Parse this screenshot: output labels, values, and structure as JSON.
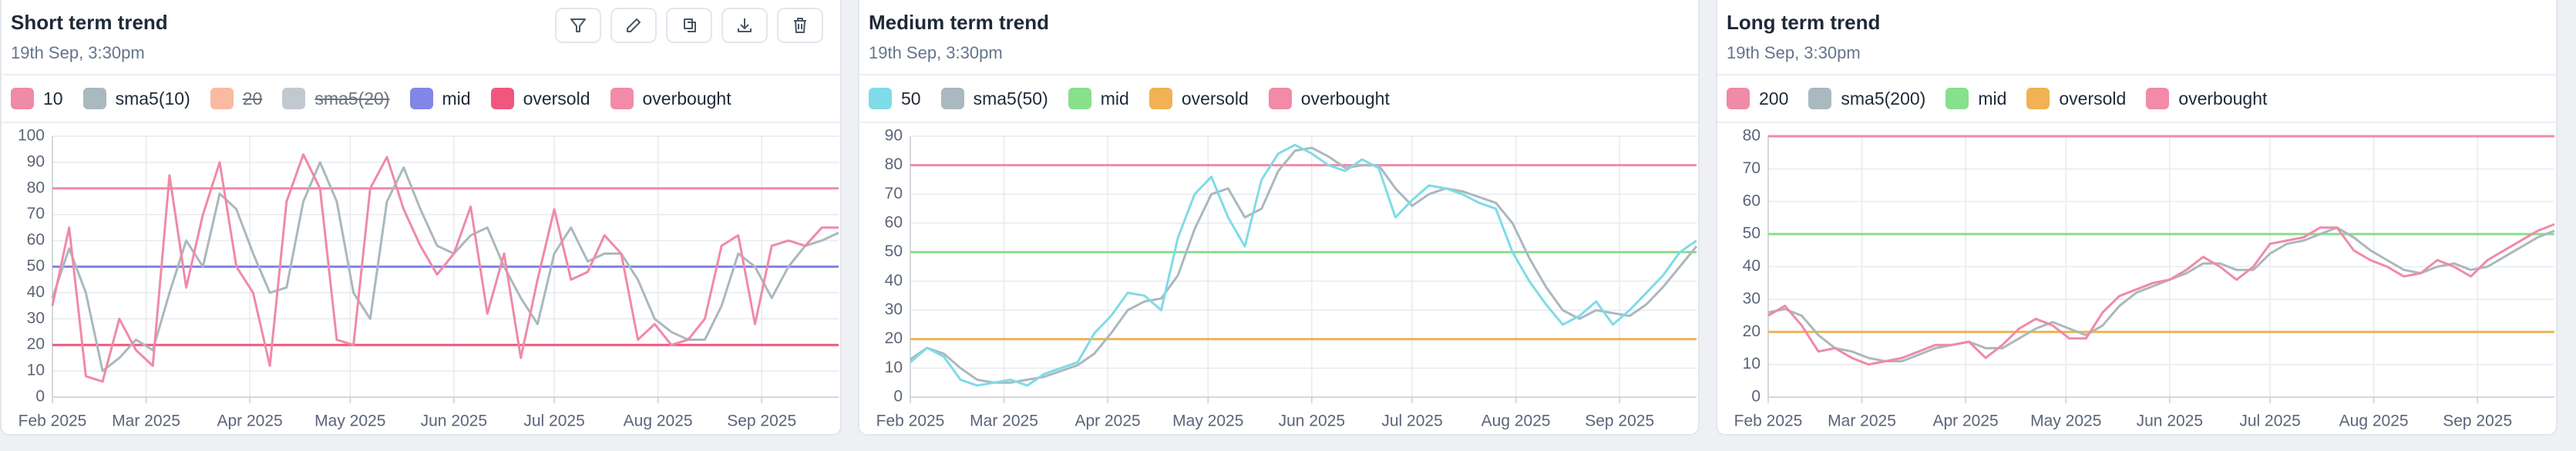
{
  "chart_data": [
    {
      "type": "line",
      "title": "Short term trend",
      "subtitle": "19th Sep, 3:30pm",
      "x": [
        0,
        5,
        10,
        15,
        20,
        25,
        30,
        35,
        40,
        45,
        50,
        55,
        60,
        65,
        70,
        75,
        80,
        85,
        90,
        95,
        100,
        105,
        110,
        115,
        120,
        125,
        130,
        135,
        140,
        145,
        150,
        155,
        160,
        165,
        170,
        175,
        180,
        185,
        190,
        195,
        200,
        205,
        210,
        215,
        220,
        225,
        230,
        235
      ],
      "xlim": [
        0,
        235
      ],
      "xticks": [
        {
          "value": 0,
          "label": "Feb 2025"
        },
        {
          "value": 28,
          "label": "Mar 2025"
        },
        {
          "value": 59,
          "label": "Apr 2025"
        },
        {
          "value": 89,
          "label": "May 2025"
        },
        {
          "value": 120,
          "label": "Jun 2025"
        },
        {
          "value": 150,
          "label": "Jul 2025"
        },
        {
          "value": 181,
          "label": "Aug 2025"
        },
        {
          "value": 212,
          "label": "Sep 2025"
        }
      ],
      "ylim": [
        0,
        100
      ],
      "yticks": [
        0,
        10,
        20,
        30,
        40,
        50,
        60,
        70,
        80,
        90,
        100
      ],
      "grid": true,
      "series": [
        {
          "name": "10",
          "color": "#ef8aa7",
          "values": [
            35,
            65,
            8,
            6,
            30,
            18,
            12,
            85,
            42,
            70,
            90,
            50,
            40,
            12,
            75,
            93,
            80,
            22,
            20,
            80,
            92,
            72,
            58,
            47,
            55,
            73,
            32,
            55,
            15,
            45,
            72,
            45,
            48,
            62,
            55,
            22,
            28,
            20,
            22,
            30,
            58,
            62,
            28,
            58,
            60,
            58,
            65,
            65
          ]
        },
        {
          "name": "sma5(10)",
          "color": "#aab8bf",
          "values": [
            38,
            57,
            40,
            10,
            15,
            22,
            18,
            40,
            60,
            50,
            78,
            72,
            55,
            40,
            42,
            75,
            90,
            75,
            40,
            30,
            75,
            88,
            72,
            58,
            55,
            62,
            65,
            50,
            38,
            28,
            55,
            65,
            52,
            55,
            55,
            45,
            30,
            25,
            22,
            22,
            35,
            55,
            50,
            38,
            50,
            58,
            60,
            63
          ]
        },
        {
          "name": "20",
          "color": "#f8a98a",
          "hidden": true
        },
        {
          "name": "sma5(20)",
          "color": "#b0bcc4",
          "hidden": true
        }
      ],
      "reference_lines": [
        {
          "name": "mid",
          "color": "#8286e6",
          "value": 50
        },
        {
          "name": "oversold",
          "color": "#f0567e",
          "value": 20
        },
        {
          "name": "overbought",
          "color": "#f28aa8",
          "value": 80
        }
      ]
    },
    {
      "type": "line",
      "title": "Medium term trend",
      "subtitle": "19th Sep, 3:30pm",
      "x": [
        0,
        5,
        10,
        15,
        20,
        25,
        30,
        35,
        40,
        45,
        50,
        55,
        60,
        65,
        70,
        75,
        80,
        85,
        90,
        95,
        100,
        105,
        110,
        115,
        120,
        125,
        130,
        135,
        140,
        145,
        150,
        155,
        160,
        165,
        170,
        175,
        180,
        185,
        190,
        195,
        200,
        205,
        210,
        215,
        220,
        225,
        230,
        235
      ],
      "xlim": [
        0,
        235
      ],
      "xticks": [
        {
          "value": 0,
          "label": "Feb 2025"
        },
        {
          "value": 28,
          "label": "Mar 2025"
        },
        {
          "value": 59,
          "label": "Apr 2025"
        },
        {
          "value": 89,
          "label": "May 2025"
        },
        {
          "value": 120,
          "label": "Jun 2025"
        },
        {
          "value": 150,
          "label": "Jul 2025"
        },
        {
          "value": 181,
          "label": "Aug 2025"
        },
        {
          "value": 212,
          "label": "Sep 2025"
        }
      ],
      "ylim": [
        0,
        90
      ],
      "yticks": [
        0,
        10,
        20,
        30,
        40,
        50,
        60,
        70,
        80,
        90
      ],
      "grid": true,
      "series": [
        {
          "name": "50",
          "color": "#7fdbe8",
          "values": [
            12,
            17,
            14,
            6,
            4,
            5,
            6,
            4,
            8,
            10,
            12,
            22,
            28,
            36,
            35,
            30,
            55,
            70,
            76,
            62,
            52,
            75,
            84,
            87,
            84,
            80,
            78,
            82,
            79,
            62,
            68,
            73,
            72,
            70,
            67,
            65,
            50,
            40,
            32,
            25,
            28,
            33,
            25,
            30,
            36,
            42,
            50,
            54
          ]
        },
        {
          "name": "sma5(50)",
          "color": "#aab8bf",
          "values": [
            13,
            17,
            15,
            10,
            6,
            5,
            5,
            6,
            7,
            9,
            11,
            15,
            22,
            30,
            33,
            34,
            42,
            58,
            70,
            72,
            62,
            65,
            78,
            85,
            86,
            83,
            79,
            80,
            80,
            72,
            66,
            70,
            72,
            71,
            69,
            67,
            60,
            48,
            38,
            30,
            27,
            30,
            29,
            28,
            32,
            38,
            45,
            52
          ]
        }
      ],
      "reference_lines": [
        {
          "name": "mid",
          "color": "#88df8c",
          "value": 50
        },
        {
          "name": "oversold",
          "color": "#f0b254",
          "value": 20
        },
        {
          "name": "overbought",
          "color": "#f28aa8",
          "value": 80
        }
      ]
    },
    {
      "type": "line",
      "title": "Long term trend",
      "subtitle": "19th Sep, 3:30pm",
      "x": [
        0,
        5,
        10,
        15,
        20,
        25,
        30,
        35,
        40,
        45,
        50,
        55,
        60,
        65,
        70,
        75,
        80,
        85,
        90,
        95,
        100,
        105,
        110,
        115,
        120,
        125,
        130,
        135,
        140,
        145,
        150,
        155,
        160,
        165,
        170,
        175,
        180,
        185,
        190,
        195,
        200,
        205,
        210,
        215,
        220,
        225,
        230,
        235
      ],
      "xlim": [
        0,
        235
      ],
      "xticks": [
        {
          "value": 0,
          "label": "Feb 2025"
        },
        {
          "value": 28,
          "label": "Mar 2025"
        },
        {
          "value": 59,
          "label": "Apr 2025"
        },
        {
          "value": 89,
          "label": "May 2025"
        },
        {
          "value": 120,
          "label": "Jun 2025"
        },
        {
          "value": 150,
          "label": "Jul 2025"
        },
        {
          "value": 181,
          "label": "Aug 2025"
        },
        {
          "value": 212,
          "label": "Sep 2025"
        }
      ],
      "ylim": [
        0,
        80
      ],
      "yticks": [
        0,
        10,
        20,
        30,
        40,
        50,
        60,
        70,
        80
      ],
      "grid": true,
      "series": [
        {
          "name": "200",
          "color": "#ef8aa7",
          "values": [
            25,
            28,
            22,
            14,
            15,
            12,
            10,
            11,
            12,
            14,
            16,
            16,
            17,
            12,
            16,
            21,
            24,
            22,
            18,
            18,
            26,
            31,
            33,
            35,
            36,
            39,
            43,
            40,
            36,
            40,
            47,
            48,
            49,
            52,
            52,
            45,
            42,
            40,
            37,
            38,
            42,
            40,
            37,
            42,
            45,
            48,
            51,
            53
          ]
        },
        {
          "name": "sma5(200)",
          "color": "#aab8bf",
          "values": [
            26,
            27,
            25,
            19,
            15,
            14,
            12,
            11,
            11,
            13,
            15,
            16,
            17,
            15,
            15,
            18,
            21,
            23,
            21,
            19,
            22,
            28,
            32,
            34,
            36,
            38,
            41,
            41,
            39,
            39,
            44,
            47,
            48,
            50,
            52,
            49,
            45,
            42,
            39,
            38,
            40,
            41,
            39,
            40,
            43,
            46,
            49,
            51
          ]
        }
      ],
      "reference_lines": [
        {
          "name": "mid",
          "color": "#88df8c",
          "value": 50
        },
        {
          "name": "oversold",
          "color": "#f0b254",
          "value": 20
        },
        {
          "name": "overbought",
          "color": "#f28aa8",
          "value": 80
        }
      ]
    }
  ]
}
